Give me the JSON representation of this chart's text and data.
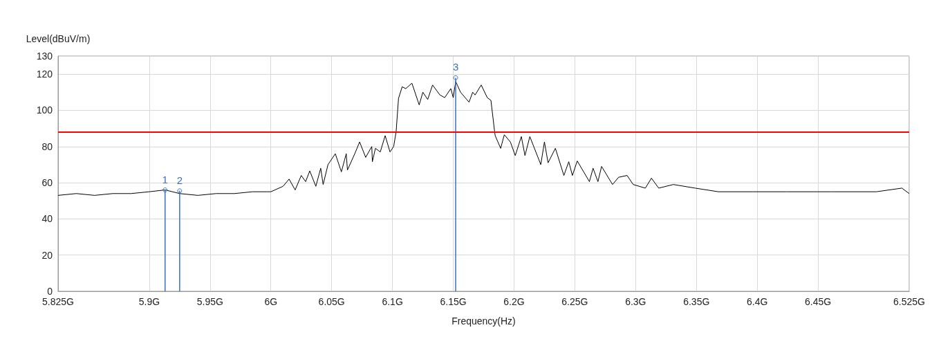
{
  "chart_data": {
    "type": "line",
    "xlabel": "Frequency(Hz)",
    "ylabel": "Level(dBuV/m)",
    "xlim": [
      5.825,
      6.525
    ],
    "ylim": [
      0,
      130
    ],
    "xticks": [
      {
        "value": 5.825,
        "label": "5.825G"
      },
      {
        "value": 5.9,
        "label": "5.9G"
      },
      {
        "value": 5.95,
        "label": "5.95G"
      },
      {
        "value": 6.0,
        "label": "6G"
      },
      {
        "value": 6.05,
        "label": "6.05G"
      },
      {
        "value": 6.1,
        "label": "6.1G"
      },
      {
        "value": 6.15,
        "label": "6.15G"
      },
      {
        "value": 6.2,
        "label": "6.2G"
      },
      {
        "value": 6.25,
        "label": "6.25G"
      },
      {
        "value": 6.3,
        "label": "6.3G"
      },
      {
        "value": 6.35,
        "label": "6.35G"
      },
      {
        "value": 6.4,
        "label": "6.4G"
      },
      {
        "value": 6.45,
        "label": "6.45G"
      },
      {
        "value": 6.525,
        "label": "6.525G"
      }
    ],
    "yticks": [
      0,
      20,
      40,
      60,
      80,
      100,
      120,
      130
    ],
    "grid": true,
    "marker": "none",
    "line_style": "solid",
    "series": [
      {
        "color": "#000000",
        "x": [
          5.825,
          5.84,
          5.855,
          5.87,
          5.885,
          5.9,
          5.913,
          5.925,
          5.94,
          5.955,
          5.97,
          5.985,
          6.0,
          6.01,
          6.015,
          6.02,
          6.025,
          6.0286,
          6.032,
          6.037,
          6.041,
          6.043,
          6.047,
          6.053,
          6.058,
          6.062,
          6.063,
          6.069,
          6.073,
          6.078,
          6.083,
          6.0835,
          6.086,
          6.09,
          6.094,
          6.098,
          6.101,
          6.103,
          6.105,
          6.108,
          6.111,
          6.116,
          6.122,
          6.125,
          6.129,
          6.133,
          6.139,
          6.143,
          6.148,
          6.15,
          6.152,
          6.156,
          6.163,
          6.166,
          6.168,
          6.173,
          6.178,
          6.181,
          6.184,
          6.1845,
          6.189,
          6.192,
          6.197,
          6.201,
          6.206,
          6.209,
          6.213,
          6.222,
          6.225,
          6.228,
          6.234,
          6.241,
          6.245,
          6.248,
          6.252,
          6.262,
          6.265,
          6.269,
          6.272,
          6.281,
          6.286,
          6.293,
          6.298,
          6.308,
          6.313,
          6.319,
          6.331,
          6.349,
          6.368,
          6.396,
          6.424,
          6.461,
          6.498,
          6.519,
          6.525
        ],
        "values": [
          53,
          54,
          53,
          54,
          54,
          55,
          56,
          54,
          53,
          54,
          54,
          55,
          55,
          58,
          62,
          56,
          64,
          60.6,
          66.5,
          58,
          68,
          59,
          70,
          76,
          66,
          76,
          67,
          76,
          82.5,
          74,
          80,
          71.6,
          79,
          77,
          86,
          77,
          80,
          88,
          106.6,
          113,
          112,
          115,
          103,
          110,
          106,
          114,
          108.5,
          107,
          112,
          107,
          116,
          110,
          104.5,
          110,
          108.5,
          114,
          107,
          105.5,
          88.4,
          86,
          79,
          86.5,
          82.5,
          75,
          85.5,
          75,
          85.5,
          70,
          82.5,
          71,
          79,
          64,
          71.6,
          64,
          72,
          60.6,
          68,
          60.6,
          69,
          59,
          63,
          64,
          59,
          57,
          62.5,
          57,
          59,
          57,
          55,
          55,
          55,
          55,
          55,
          57,
          54
        ]
      },
      {
        "type": "lollipop",
        "color": "#3a6fc8",
        "x": [
          5.913,
          5.925,
          6.152
        ],
        "values": [
          56,
          55.5,
          118
        ]
      }
    ],
    "ref_lines": [
      {
        "axis": "y",
        "value": 88,
        "color": "#ff0000"
      }
    ],
    "annotations": [
      {
        "text": "1",
        "x": 5.913,
        "y": 56
      },
      {
        "text": "2",
        "x": 5.925,
        "y": 55.5
      },
      {
        "text": "3",
        "x": 6.152,
        "y": 118
      }
    ]
  }
}
